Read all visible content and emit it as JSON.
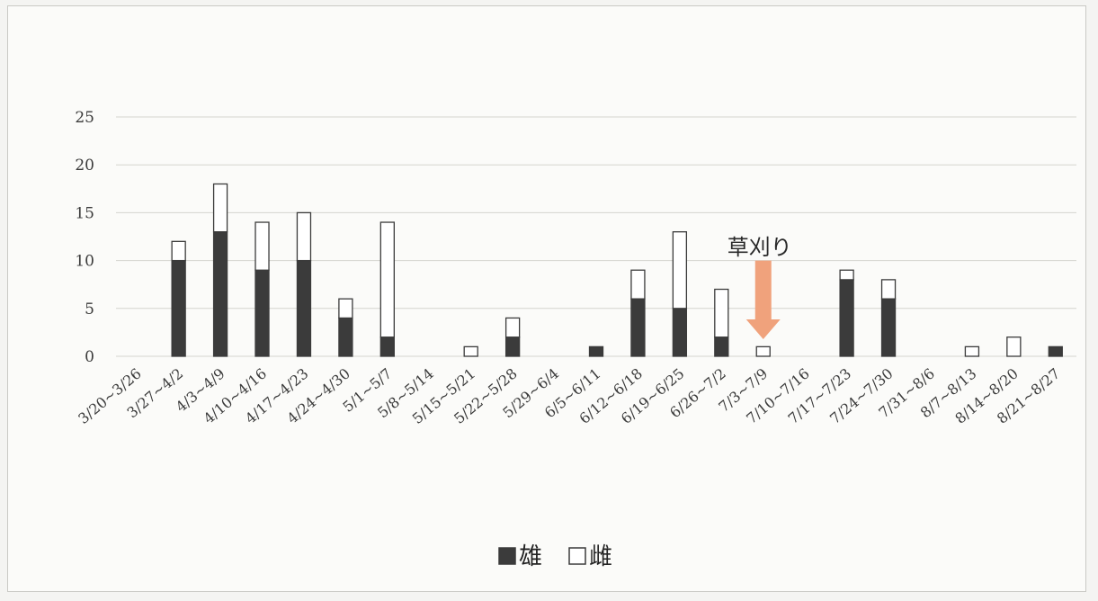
{
  "chart_data": {
    "type": "bar",
    "stacked": true,
    "categories": [
      "3/20~3/26",
      "3/27~4/2",
      "4/3~4/9",
      "4/10~4/16",
      "4/17~4/23",
      "4/24~4/30",
      "5/1~5/7",
      "5/8~5/14",
      "5/15~5/21",
      "5/22~5/28",
      "5/29~6/4",
      "6/5~6/11",
      "6/12~6/18",
      "6/19~6/25",
      "6/26~7/2",
      "7/3~7/9",
      "7/10~7/16",
      "7/17~7/23",
      "7/24~7/30",
      "7/31~8/6",
      "8/7~8/13",
      "8/14~8/20",
      "8/21~8/27"
    ],
    "series": [
      {
        "name": "雄",
        "color": "#3b3b3b",
        "values": [
          0,
          10,
          13,
          9,
          10,
          4,
          2,
          0,
          0,
          2,
          0,
          1,
          6,
          5,
          2,
          0,
          0,
          8,
          6,
          0,
          0,
          0,
          1
        ]
      },
      {
        "name": "雌",
        "color": "#ffffff",
        "values": [
          0,
          2,
          5,
          5,
          5,
          2,
          12,
          0,
          1,
          2,
          0,
          0,
          3,
          8,
          5,
          1,
          0,
          1,
          2,
          0,
          1,
          2,
          0
        ]
      }
    ],
    "yticks": [
      0,
      5,
      10,
      15,
      20,
      25
    ],
    "ylim": [
      0,
      25
    ],
    "grid": true,
    "legend": "bottom-center",
    "annotation": {
      "text": "草刈り",
      "category": "7/3~7/9",
      "arrow_color": "#f0a27c"
    },
    "title": "",
    "xlabel": "",
    "ylabel": ""
  }
}
